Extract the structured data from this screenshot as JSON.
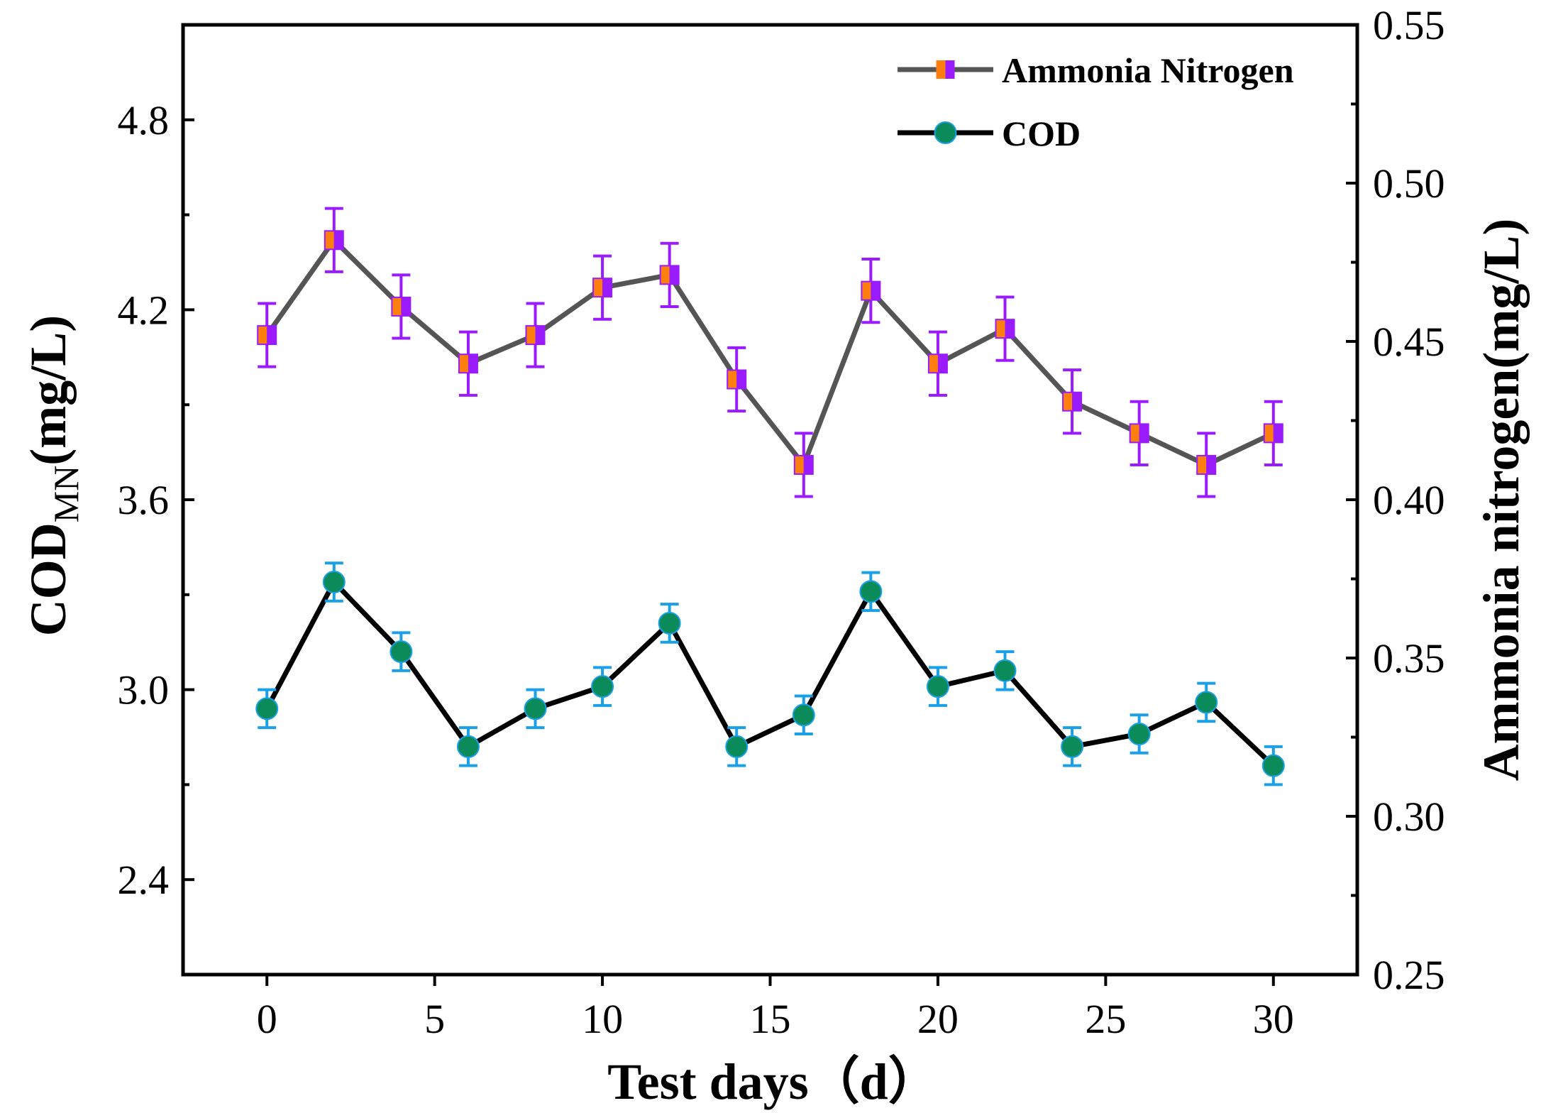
{
  "chart_data": {
    "type": "line",
    "x_axis": {
      "label": "Test days（d）",
      "range": [
        -2.5,
        32.5
      ],
      "ticks": [
        0,
        5,
        10,
        15,
        20,
        25,
        30
      ],
      "tick_labels": [
        "0",
        "5",
        "10",
        "15",
        "20",
        "25",
        "30"
      ]
    },
    "y_axis_left": {
      "label_main": "COD",
      "label_sub": "MN",
      "label_suffix": "(mg/L)",
      "range": [
        2.1,
        5.1
      ],
      "ticks": [
        2.4,
        3.0,
        3.6,
        4.2,
        4.8
      ],
      "tick_labels": [
        "2.4",
        "3.0",
        "3.6",
        "4.2",
        "4.8"
      ],
      "minor_ticks": [
        2.1,
        2.7,
        3.3,
        3.9,
        4.5,
        5.1
      ]
    },
    "y_axis_right": {
      "label": "Ammonia nitrogen(mg/L)",
      "range": [
        0.25,
        0.55
      ],
      "ticks": [
        0.25,
        0.3,
        0.35,
        0.4,
        0.45,
        0.5,
        0.55
      ],
      "tick_labels": [
        "0.25",
        "0.30",
        "0.35",
        "0.40",
        "0.45",
        "0.50",
        "0.55"
      ],
      "minor_ticks": [
        0.275,
        0.325,
        0.375,
        0.425,
        0.475,
        0.525
      ]
    },
    "legend_position": "top-right",
    "series": [
      {
        "name": "Ammonia Nitrogen",
        "axis": "right",
        "line_color": "#555555",
        "marker": "square",
        "marker_fill_left": "#ff7f0e",
        "marker_fill_right": "#9b1bff",
        "error_color": "#9b1bff",
        "x": [
          0,
          2,
          4,
          6,
          8,
          10,
          12,
          14,
          16,
          18,
          20,
          22,
          24,
          26,
          28,
          30
        ],
        "y": [
          0.452,
          0.482,
          0.461,
          0.443,
          0.452,
          0.467,
          0.471,
          0.438,
          0.411,
          0.466,
          0.443,
          0.454,
          0.431,
          0.421,
          0.411,
          0.421
        ],
        "error": [
          0.01,
          0.01,
          0.01,
          0.01,
          0.01,
          0.01,
          0.01,
          0.01,
          0.01,
          0.01,
          0.01,
          0.01,
          0.01,
          0.01,
          0.01,
          0.01
        ]
      },
      {
        "name": "COD",
        "axis": "left",
        "line_color": "#000000",
        "marker": "circle",
        "marker_fill": "#0b8a5a",
        "error_color": "#1aa0e8",
        "x": [
          0,
          2,
          4,
          6,
          8,
          10,
          12,
          14,
          16,
          18,
          20,
          22,
          24,
          26,
          28,
          30
        ],
        "y": [
          2.94,
          3.34,
          3.12,
          2.82,
          2.94,
          3.01,
          3.21,
          2.82,
          2.92,
          3.31,
          3.01,
          3.06,
          2.82,
          2.86,
          2.96,
          2.76
        ],
        "error": [
          0.06,
          0.06,
          0.06,
          0.06,
          0.06,
          0.06,
          0.06,
          0.06,
          0.06,
          0.06,
          0.06,
          0.06,
          0.06,
          0.06,
          0.06,
          0.06
        ]
      }
    ]
  }
}
